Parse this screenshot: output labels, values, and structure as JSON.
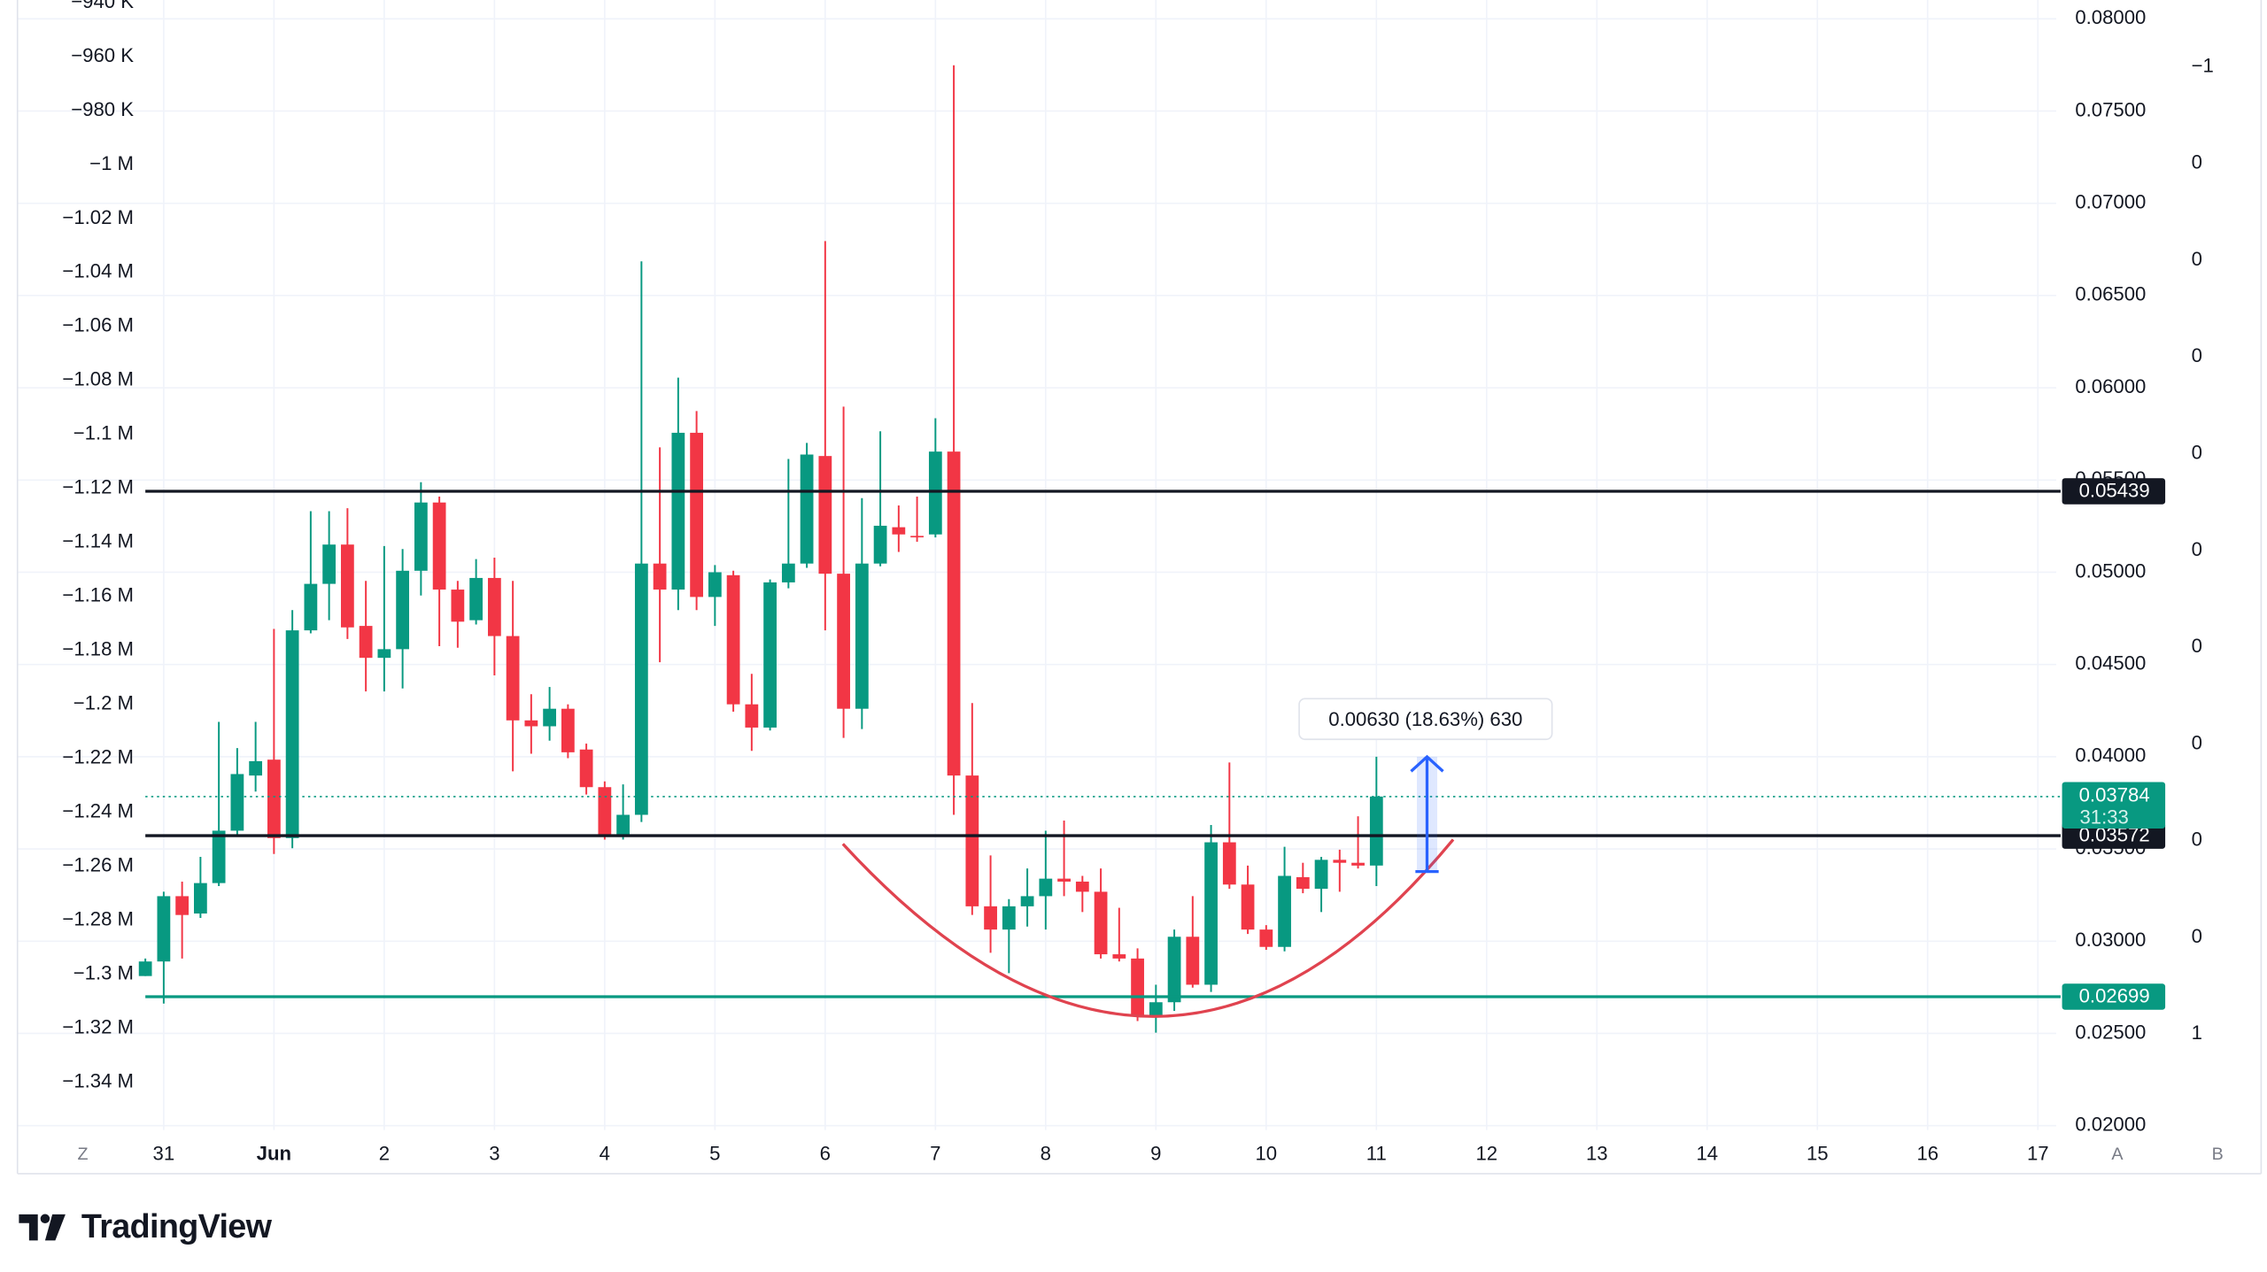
{
  "chart_data": {
    "type": "candlestick",
    "up_color": "#089981",
    "down_color": "#f23645",
    "open": [
      0.02811,
      0.0289,
      0.03244,
      0.0315,
      0.03315,
      0.03599,
      0.03898,
      0.03984,
      0.03559,
      0.04685,
      0.04937,
      0.0515,
      0.04709,
      0.04536,
      0.04583,
      0.05008,
      0.05378,
      0.04906,
      0.0474,
      0.04969,
      0.04654,
      0.04197,
      0.04165,
      0.0426,
      0.04039,
      0.03835,
      0.03575,
      0.03685,
      0.05047,
      0.04906,
      0.05756,
      0.04866,
      0.04984,
      0.04284,
      0.04158,
      0.04945,
      0.05047,
      0.0563,
      0.04992,
      0.0426,
      0.05047,
      0.05244,
      0.05197,
      0.05205,
      0.05654,
      0.03898,
      0.03189,
      0.03063,
      0.03189,
      0.03244,
      0.03339,
      0.03323,
      0.03268,
      0.02929,
      0.02906,
      0.02591,
      0.02669,
      0.03024,
      0.02764,
      0.03536,
      0.03307,
      0.03063,
      0.02969,
      0.03347,
      0.03284,
      0.03441,
      0.03425,
      0.0341
    ],
    "high": [
      0.02906,
      0.03268,
      0.03323,
      0.03457,
      0.04189,
      0.04047,
      0.04189,
      0.04693,
      0.04795,
      0.05331,
      0.05331,
      0.05347,
      0.04953,
      0.05142,
      0.05126,
      0.05488,
      0.0541,
      0.04953,
      0.05071,
      0.05079,
      0.04953,
      0.04339,
      0.04378,
      0.04284,
      0.04071,
      0.03866,
      0.0385,
      0.06685,
      0.05677,
      0.06055,
      0.05874,
      0.05039,
      0.05008,
      0.04449,
      0.04961,
      0.05614,
      0.05701,
      0.06795,
      0.05898,
      0.05402,
      0.05764,
      0.05362,
      0.0541,
      0.05835,
      0.07748,
      0.04291,
      0.03465,
      0.03228,
      0.03394,
      0.03599,
      0.03654,
      0.03354,
      0.03394,
      0.03181,
      0.02961,
      0.02764,
      0.03063,
      0.03244,
      0.0363,
      0.03969,
      0.0341,
      0.03087,
      0.03512,
      0.03425,
      0.03457,
      0.03496,
      0.03677,
      0.04
    ],
    "low": [
      0.02811,
      0.02662,
      0.02906,
      0.03126,
      0.03299,
      0.03575,
      0.03811,
      0.03473,
      0.03504,
      0.04669,
      0.0474,
      0.04638,
      0.04354,
      0.04354,
      0.0437,
      0.04874,
      0.04599,
      0.04591,
      0.04717,
      0.04441,
      0.03921,
      0.04016,
      0.04087,
      0.03992,
      0.03795,
      0.03551,
      0.03551,
      0.03646,
      0.04512,
      0.04795,
      0.04795,
      0.04709,
      0.04244,
      0.04032,
      0.04142,
      0.04913,
      0.05024,
      0.04685,
      0.04102,
      0.0415,
      0.05032,
      0.0511,
      0.05165,
      0.05189,
      0.03685,
      0.03142,
      0.02937,
      0.02827,
      0.03079,
      0.03063,
      0.03244,
      0.03158,
      0.02906,
      0.0289,
      0.02567,
      0.02504,
      0.02622,
      0.02748,
      0.02725,
      0.03284,
      0.03039,
      0.02953,
      0.02945,
      0.0326,
      0.03158,
      0.03268,
      0.03394,
      0.03299
    ],
    "close": [
      0.0289,
      0.03244,
      0.03142,
      0.03315,
      0.03599,
      0.03906,
      0.03976,
      0.03559,
      0.04685,
      0.04937,
      0.0515,
      0.04701,
      0.04536,
      0.04583,
      0.05008,
      0.05378,
      0.04906,
      0.04732,
      0.04969,
      0.04654,
      0.04197,
      0.04165,
      0.0426,
      0.04024,
      0.03835,
      0.03575,
      0.03685,
      0.05047,
      0.04906,
      0.05756,
      0.04866,
      0.05,
      0.04284,
      0.04158,
      0.04945,
      0.05047,
      0.05638,
      0.04992,
      0.0426,
      0.05047,
      0.05252,
      0.05205,
      0.05189,
      0.05654,
      0.03898,
      0.03189,
      0.03063,
      0.03189,
      0.03244,
      0.03339,
      0.03323,
      0.03268,
      0.02929,
      0.02906,
      0.02591,
      0.02669,
      0.03024,
      0.02764,
      0.03536,
      0.03307,
      0.03063,
      0.02969,
      0.03354,
      0.03284,
      0.03441,
      0.03425,
      0.0341,
      0.03784
    ],
    "xlim": [
      0,
      104
    ],
    "xticks": [
      {
        "value": 1,
        "label": "31"
      },
      {
        "value": 7,
        "label": "Jun"
      },
      {
        "value": 13,
        "label": "2"
      },
      {
        "value": 19,
        "label": "3"
      },
      {
        "value": 25,
        "label": "4"
      },
      {
        "value": 31,
        "label": "5"
      },
      {
        "value": 37,
        "label": "6"
      },
      {
        "value": 43,
        "label": "7"
      },
      {
        "value": 49,
        "label": "8"
      },
      {
        "value": 55,
        "label": "9"
      },
      {
        "value": 61,
        "label": "10"
      },
      {
        "value": 67,
        "label": "11"
      },
      {
        "value": 73,
        "label": "12"
      },
      {
        "value": 79,
        "label": "13"
      },
      {
        "value": 85,
        "label": "14"
      },
      {
        "value": 91,
        "label": "15"
      },
      {
        "value": 97,
        "label": "16"
      },
      {
        "value": 103,
        "label": "17"
      }
    ],
    "ylim": [
      0.01976,
      0.08102
    ],
    "yticks": [
      {
        "value": 0.02,
        "label": "0.02000"
      },
      {
        "value": 0.025,
        "label": "0.02500"
      },
      {
        "value": 0.03,
        "label": "0.03000"
      },
      {
        "value": 0.035,
        "label": "0.03500"
      },
      {
        "value": 0.04,
        "label": "0.04000"
      },
      {
        "value": 0.045,
        "label": "0.04500"
      },
      {
        "value": 0.05,
        "label": "0.05000"
      },
      {
        "value": 0.055,
        "label": "0.05500"
      },
      {
        "value": 0.06,
        "label": "0.06000"
      },
      {
        "value": 0.065,
        "label": "0.06500"
      },
      {
        "value": 0.07,
        "label": "0.07000"
      },
      {
        "value": 0.075,
        "label": "0.07500"
      },
      {
        "value": 0.08,
        "label": "0.08000"
      }
    ],
    "y2lim": [
      -1357800,
      -939000
    ],
    "y2ticks": [
      {
        "value": -940000,
        "label": "−940 K"
      },
      {
        "value": -960000,
        "label": "−960 K"
      },
      {
        "value": -980000,
        "label": "−980 K"
      },
      {
        "value": -1000000,
        "label": "−1 M"
      },
      {
        "value": -1020000,
        "label": "−1.02 M"
      },
      {
        "value": -1040000,
        "label": "−1.04 M"
      },
      {
        "value": -1060000,
        "label": "−1.06 M"
      },
      {
        "value": -1080000,
        "label": "−1.08 M"
      },
      {
        "value": -1100000,
        "label": "−1.1 M"
      },
      {
        "value": -1120000,
        "label": "−1.12 M"
      },
      {
        "value": -1140000,
        "label": "−1.14 M"
      },
      {
        "value": -1160000,
        "label": "−1.16 M"
      },
      {
        "value": -1180000,
        "label": "−1.18 M"
      },
      {
        "value": -1200000,
        "label": "−1.2 M"
      },
      {
        "value": -1220000,
        "label": "−1.22 M"
      },
      {
        "value": -1240000,
        "label": "−1.24 M"
      },
      {
        "value": -1260000,
        "label": "−1.26 M"
      },
      {
        "value": -1280000,
        "label": "−1.28 M"
      },
      {
        "value": -1300000,
        "label": "−1.3 M"
      },
      {
        "value": -1320000,
        "label": "−1.32 M"
      },
      {
        "value": -1340000,
        "label": "−1.34 M"
      }
    ],
    "extra_axis_labels": [
      "−1",
      "0",
      "0",
      "0",
      "0",
      "0",
      "0",
      "0",
      "0",
      "0",
      "1"
    ],
    "levels": [
      {
        "value": 0.05439,
        "color": "#131722"
      },
      {
        "value": 0.03572,
        "color": "#131722"
      },
      {
        "value": 0.02699,
        "color": "#089981"
      }
    ],
    "countdown": "31:33",
    "measure_label": "0.00630 (18.63%) 630",
    "grid": true,
    "buttons": [
      "Z",
      "A",
      "B"
    ],
    "brand": "TradingView"
  }
}
